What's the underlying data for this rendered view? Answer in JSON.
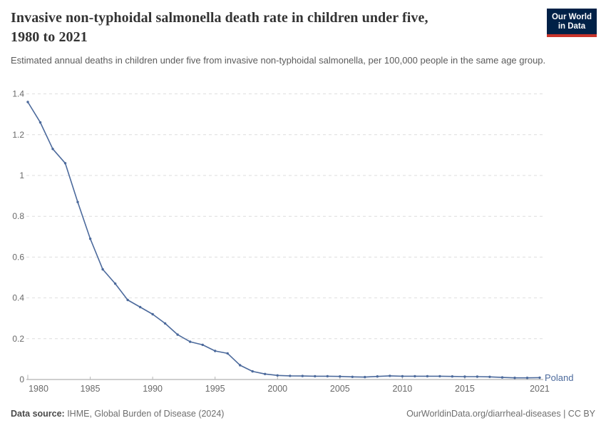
{
  "header": {
    "title": "Invasive non-typhoidal salmonella death rate in children under five, 1980 to 2021",
    "subtitle": "Estimated annual deaths in children under five from invasive non-typhoidal salmonella, per 100,000 people in the same age group.",
    "logo": {
      "line1": "Our World",
      "line2": "in Data",
      "bg_color": "#002147",
      "accent_color": "#c9342b"
    }
  },
  "chart_data": {
    "type": "line",
    "title": "Invasive non-typhoidal salmonella death rate in children under five, 1980 to 2021",
    "xlabel": "",
    "ylabel": "",
    "xlim": [
      1980,
      2021
    ],
    "ylim": [
      0,
      1.4
    ],
    "grid": "horizontal-dashed",
    "legend_position": "end-of-line-label",
    "x_ticks": [
      1980,
      1985,
      1990,
      1995,
      2000,
      2005,
      2010,
      2015,
      2021
    ],
    "x_tick_labels": [
      "1980",
      "1985",
      "1990",
      "1995",
      "2000",
      "2005",
      "2010",
      "2015",
      "2021"
    ],
    "y_ticks": [
      0,
      0.2,
      0.4,
      0.6,
      0.8,
      1,
      1.2,
      1.4
    ],
    "y_tick_labels": [
      "0",
      "0.2",
      "0.4",
      "0.6",
      "0.8",
      "1",
      "1.2",
      "1.4"
    ],
    "x": [
      1980,
      1981,
      1982,
      1983,
      1984,
      1985,
      1986,
      1987,
      1988,
      1989,
      1990,
      1991,
      1992,
      1993,
      1994,
      1995,
      1996,
      1997,
      1998,
      1999,
      2000,
      2001,
      2002,
      2003,
      2004,
      2005,
      2006,
      2007,
      2008,
      2009,
      2010,
      2011,
      2012,
      2013,
      2014,
      2015,
      2016,
      2017,
      2018,
      2019,
      2020,
      2021
    ],
    "series": [
      {
        "name": "Poland",
        "color": "#4C6A9C",
        "values": [
          1.36,
          1.26,
          1.13,
          1.06,
          0.87,
          0.69,
          0.54,
          0.47,
          0.39,
          0.355,
          0.32,
          0.275,
          0.22,
          0.185,
          0.17,
          0.14,
          0.128,
          0.07,
          0.04,
          0.027,
          0.02,
          0.018,
          0.017,
          0.016,
          0.016,
          0.015,
          0.013,
          0.012,
          0.015,
          0.018,
          0.016,
          0.016,
          0.016,
          0.016,
          0.015,
          0.014,
          0.014,
          0.013,
          0.01,
          0.008,
          0.008,
          0.009
        ]
      }
    ]
  },
  "footer": {
    "datasource_label": "Data source:",
    "datasource_value": " IHME, Global Burden of Disease (2024)",
    "link": "OurWorldinData.org/diarrheal-diseases | CC BY"
  }
}
